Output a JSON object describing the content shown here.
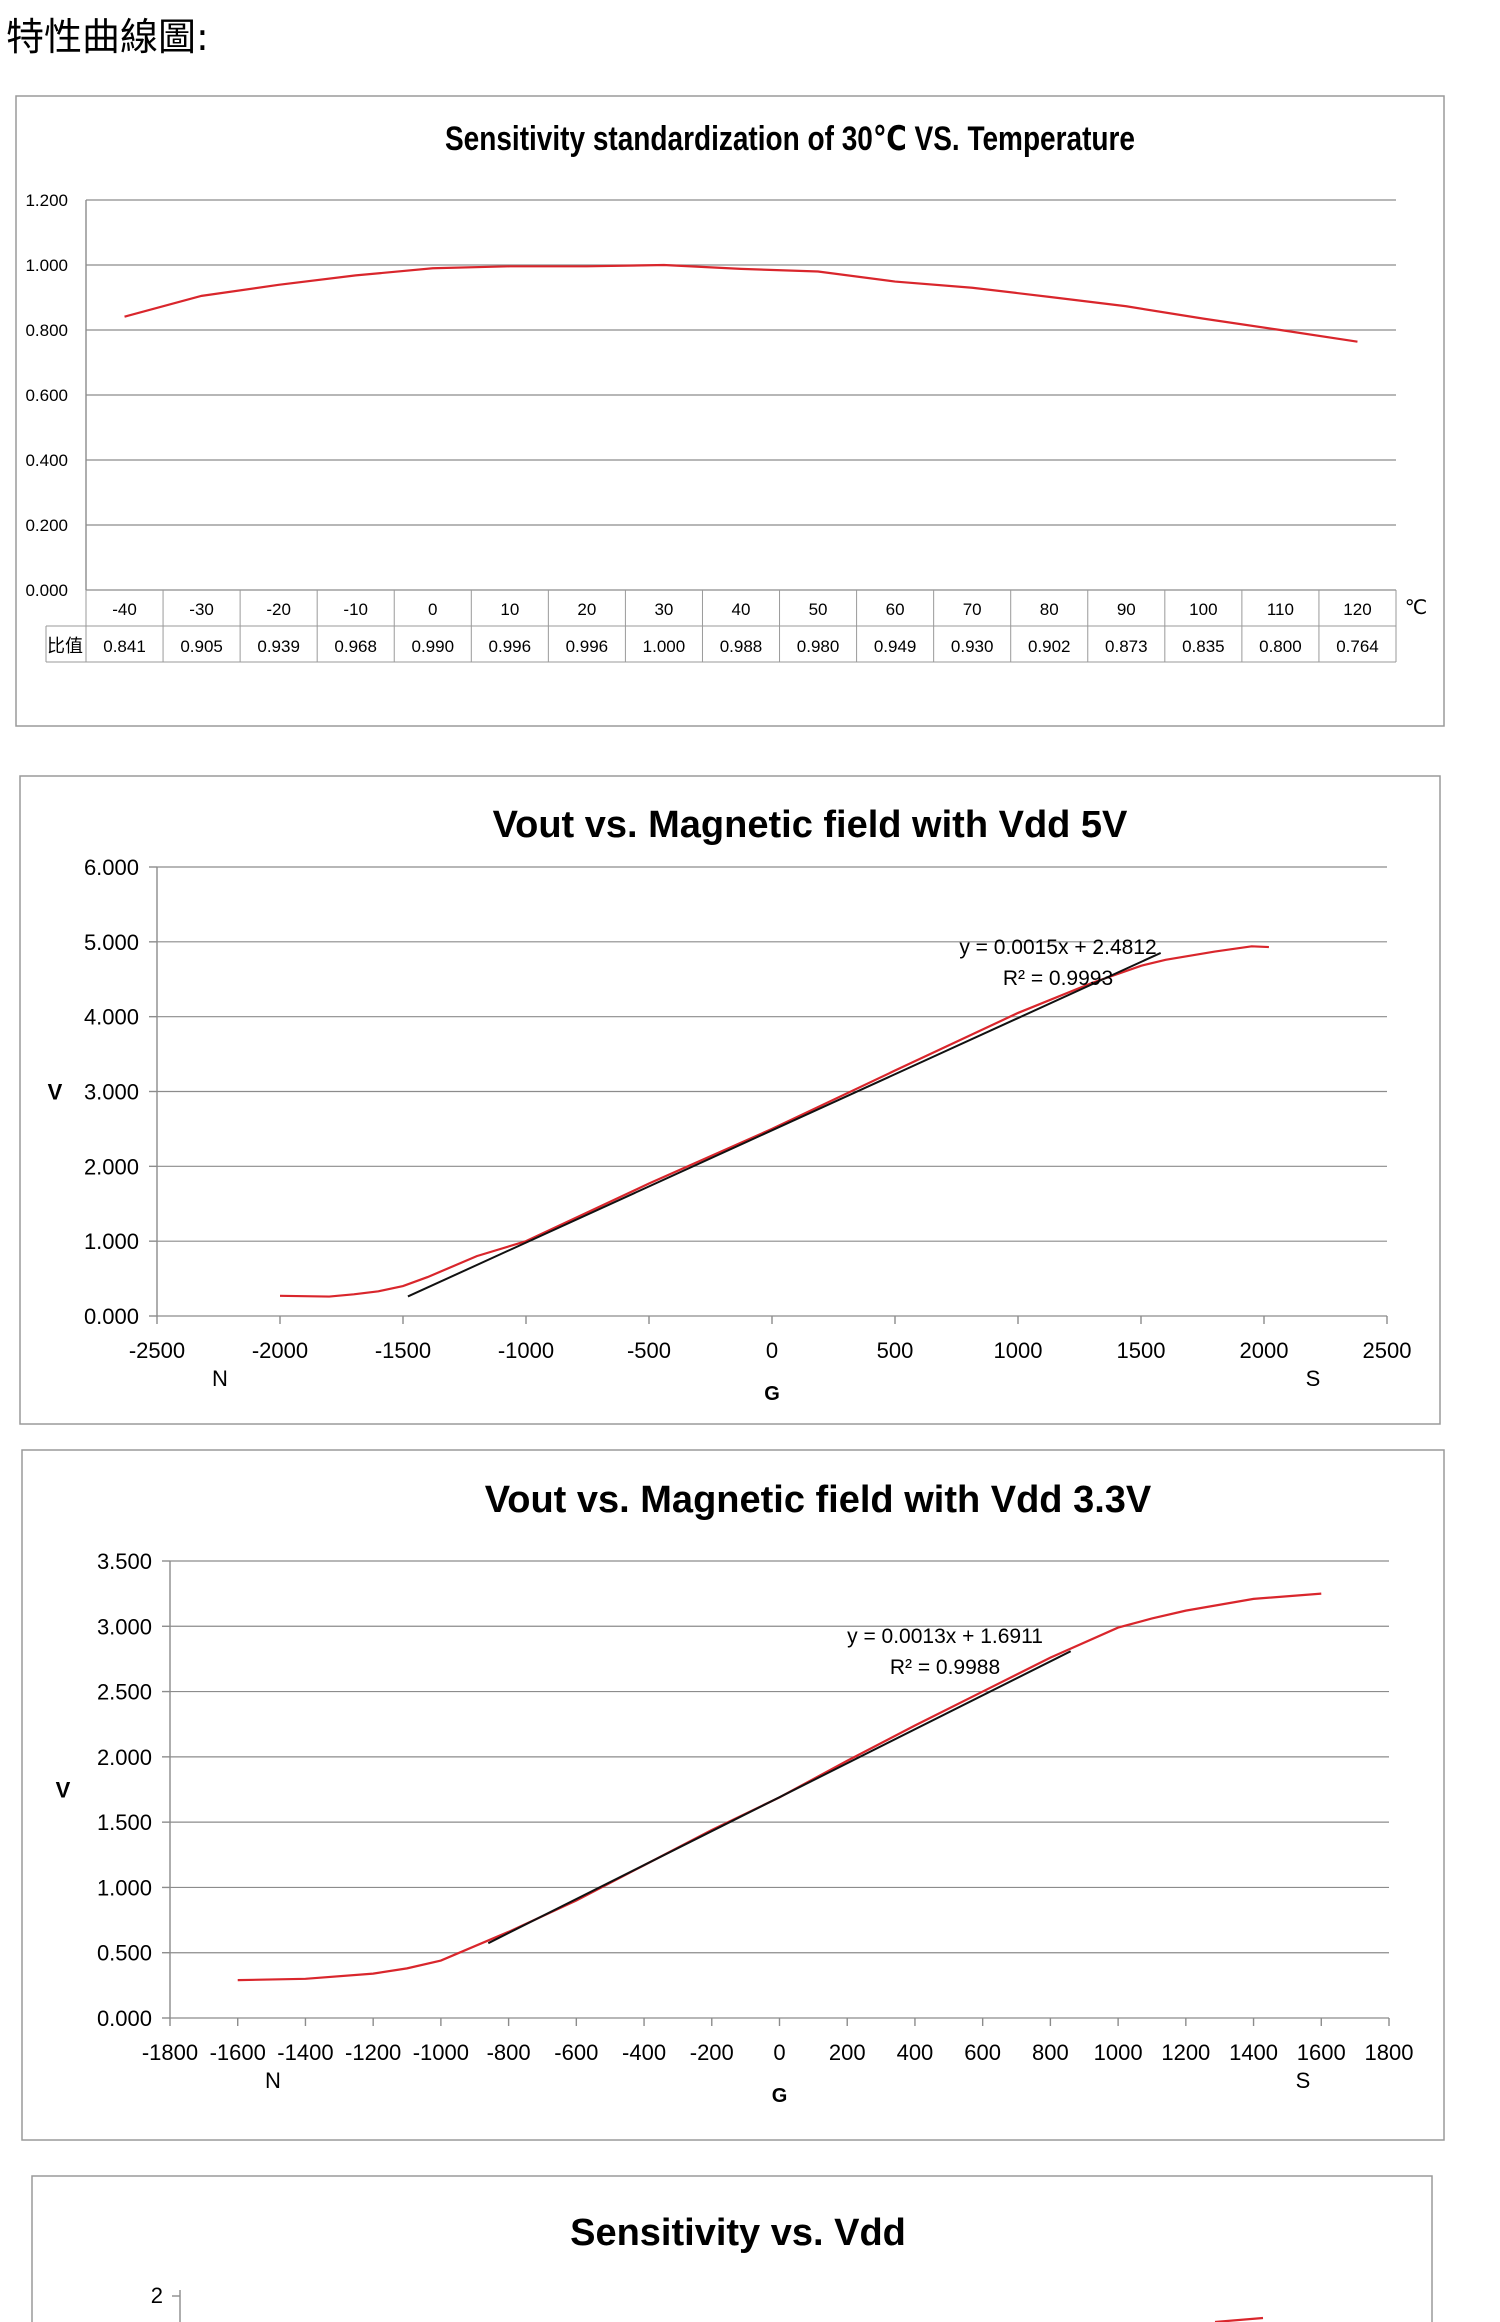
{
  "heading": "特性曲線圖:",
  "chart_data": [
    {
      "type": "line",
      "title": "Sensitivity standardization of 30℃  VS.  Temperature",
      "categories": [
        "-40",
        "-30",
        "-20",
        "-10",
        "0",
        "10",
        "20",
        "30",
        "40",
        "50",
        "60",
        "70",
        "80",
        "90",
        "100",
        "110",
        "120"
      ],
      "x_unit": "℃",
      "y_ticks": [
        "0.000",
        "0.200",
        "0.400",
        "0.600",
        "0.800",
        "1.000",
        "1.200"
      ],
      "ylim": [
        0,
        1.2
      ],
      "grid": true,
      "table_row_label": "比值",
      "table_values": [
        "0.841",
        "0.905",
        "0.939",
        "0.968",
        "0.990",
        "0.996",
        "0.996",
        "1.000",
        "0.988",
        "0.980",
        "0.949",
        "0.930",
        "0.902",
        "0.873",
        "0.835",
        "0.800",
        "0.764"
      ],
      "series": [
        {
          "values": [
            0.841,
            0.905,
            0.939,
            0.968,
            0.99,
            0.996,
            0.996,
            1.0,
            0.988,
            0.98,
            0.949,
            0.93,
            0.902,
            0.873,
            0.835,
            0.8,
            0.764
          ],
          "color": "#d9262c"
        }
      ]
    },
    {
      "type": "line",
      "title": "Vout vs. Magnetic field with Vdd 5V",
      "xlabel": "G",
      "ylabel": "V",
      "x_left_label": "N",
      "x_right_label": "S",
      "x_ticks": [
        "-2500",
        "-2000",
        "-1500",
        "-1000",
        "-500",
        "0",
        "500",
        "1000",
        "1500",
        "2000",
        "2500"
      ],
      "y_ticks": [
        "0.000",
        "1.000",
        "2.000",
        "3.000",
        "4.000",
        "5.000",
        "6.000"
      ],
      "xlim": [
        -2500,
        2500
      ],
      "ylim": [
        0,
        6
      ],
      "grid": true,
      "trendline_equation": "y = 0.0015x + 2.4812",
      "trendline_r2": "R² = 0.9993",
      "trendline": {
        "slope": 0.0015,
        "intercept": 2.4812,
        "x_range": [
          -1480,
          1580
        ],
        "color": "#111111"
      },
      "series": [
        {
          "color": "#d9262c",
          "x": [
            -2000,
            -1800,
            -1700,
            -1600,
            -1500,
            -1400,
            -1200,
            -1000,
            -500,
            0,
            500,
            1000,
            1300,
            1500,
            1600,
            1800,
            1950,
            2020
          ],
          "y": [
            0.27,
            0.26,
            0.29,
            0.33,
            0.4,
            0.52,
            0.8,
            1.0,
            1.77,
            2.5,
            3.28,
            4.05,
            4.45,
            4.68,
            4.76,
            4.87,
            4.94,
            4.93
          ]
        }
      ]
    },
    {
      "type": "line",
      "title": "Vout vs. Magnetic field with Vdd 3.3V",
      "xlabel": "G",
      "ylabel": "V",
      "x_left_label": "N",
      "x_right_label": "S",
      "x_ticks": [
        "-1800",
        "-1600",
        "-1400",
        "-1200",
        "-1000",
        "-800",
        "-600",
        "-400",
        "-200",
        "0",
        "200",
        "400",
        "600",
        "800",
        "1000",
        "1200",
        "1400",
        "1600",
        "1800"
      ],
      "y_ticks": [
        "0.000",
        "0.500",
        "1.000",
        "1.500",
        "2.000",
        "2.500",
        "3.000",
        "3.500"
      ],
      "xlim": [
        -1800,
        1800
      ],
      "ylim": [
        0,
        3.5
      ],
      "grid": true,
      "trendline_equation": "y = 0.0013x + 1.6911",
      "trendline_r2": "R² = 0.9988",
      "trendline": {
        "slope": 0.0013,
        "intercept": 1.6911,
        "x_range": [
          -860,
          860
        ],
        "color": "#111111"
      },
      "series": [
        {
          "color": "#d9262c",
          "x": [
            -1600,
            -1400,
            -1200,
            -1100,
            -1000,
            -800,
            -600,
            -400,
            -200,
            0,
            200,
            400,
            600,
            800,
            1000,
            1100,
            1200,
            1400,
            1600
          ],
          "y": [
            0.29,
            0.3,
            0.34,
            0.38,
            0.44,
            0.66,
            0.9,
            1.17,
            1.44,
            1.69,
            1.97,
            2.24,
            2.5,
            2.76,
            2.99,
            3.06,
            3.12,
            3.21,
            3.25
          ]
        }
      ]
    },
    {
      "type": "line",
      "title": "Sensitivity vs. Vdd",
      "y_ticks": [
        "2"
      ],
      "grid": true
    }
  ]
}
